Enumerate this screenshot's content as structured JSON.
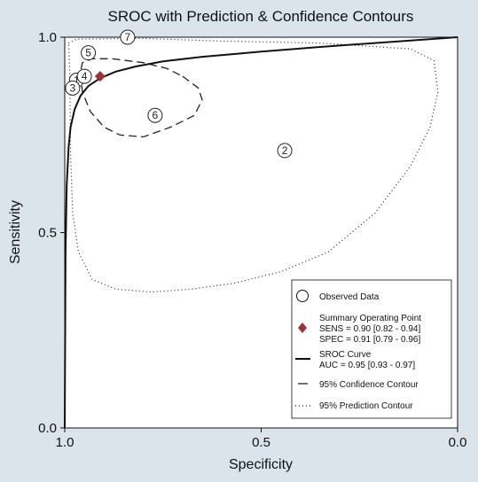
{
  "chart_data": {
    "type": "scatter",
    "title": "SROC with Prediction & Confidence Contours",
    "xlabel": "Specificity",
    "ylabel": "Sensitivity",
    "x_reversed": true,
    "xlim": [
      1.0,
      0.0
    ],
    "ylim": [
      0.0,
      1.0
    ],
    "x_ticks": [
      "1.0",
      "0.5",
      "0.0"
    ],
    "y_ticks": [
      "0.0",
      "0.5",
      "1.0"
    ],
    "grid": false,
    "legend_position": "bottom-right",
    "observed_data": [
      {
        "label": "1",
        "specificity": 0.97,
        "sensitivity": 0.89
      },
      {
        "label": "2",
        "specificity": 0.44,
        "sensitivity": 0.71
      },
      {
        "label": "3",
        "specificity": 0.98,
        "sensitivity": 0.87
      },
      {
        "label": "4",
        "specificity": 0.95,
        "sensitivity": 0.9
      },
      {
        "label": "5",
        "specificity": 0.94,
        "sensitivity": 0.96
      },
      {
        "label": "6",
        "specificity": 0.77,
        "sensitivity": 0.8
      },
      {
        "label": "7",
        "specificity": 0.84,
        "sensitivity": 1.0
      }
    ],
    "summary_point": {
      "specificity": 0.91,
      "sensitivity": 0.9
    },
    "sroc_curve": [
      [
        1.0,
        0.0
      ],
      [
        0.998,
        0.45
      ],
      [
        0.995,
        0.62
      ],
      [
        0.99,
        0.72
      ],
      [
        0.985,
        0.77
      ],
      [
        0.975,
        0.815
      ],
      [
        0.96,
        0.85
      ],
      [
        0.94,
        0.875
      ],
      [
        0.91,
        0.895
      ],
      [
        0.87,
        0.912
      ],
      [
        0.82,
        0.925
      ],
      [
        0.75,
        0.938
      ],
      [
        0.65,
        0.95
      ],
      [
        0.5,
        0.963
      ],
      [
        0.35,
        0.975
      ],
      [
        0.2,
        0.986
      ],
      [
        0.0,
        1.0
      ]
    ],
    "confidence_contour": [
      [
        0.7,
        0.9
      ],
      [
        0.66,
        0.87
      ],
      [
        0.65,
        0.84
      ],
      [
        0.67,
        0.8
      ],
      [
        0.73,
        0.77
      ],
      [
        0.8,
        0.745
      ],
      [
        0.86,
        0.75
      ],
      [
        0.9,
        0.77
      ],
      [
        0.935,
        0.81
      ],
      [
        0.955,
        0.86
      ],
      [
        0.96,
        0.91
      ],
      [
        0.955,
        0.935
      ],
      [
        0.93,
        0.945
      ],
      [
        0.88,
        0.945
      ],
      [
        0.8,
        0.935
      ],
      [
        0.74,
        0.92
      ],
      [
        0.7,
        0.9
      ]
    ],
    "prediction_contour": [
      [
        0.99,
        0.985
      ],
      [
        0.97,
        0.995
      ],
      [
        0.8,
        0.997
      ],
      [
        0.6,
        0.99
      ],
      [
        0.35,
        0.985
      ],
      [
        0.12,
        0.97
      ],
      [
        0.06,
        0.94
      ],
      [
        0.05,
        0.86
      ],
      [
        0.07,
        0.77
      ],
      [
        0.12,
        0.67
      ],
      [
        0.21,
        0.55
      ],
      [
        0.33,
        0.45
      ],
      [
        0.45,
        0.4
      ],
      [
        0.57,
        0.37
      ],
      [
        0.68,
        0.355
      ],
      [
        0.78,
        0.348
      ],
      [
        0.87,
        0.355
      ],
      [
        0.93,
        0.38
      ],
      [
        0.965,
        0.45
      ],
      [
        0.98,
        0.55
      ],
      [
        0.985,
        0.7
      ],
      [
        0.986,
        0.8
      ],
      [
        0.987,
        0.9
      ],
      [
        0.99,
        0.985
      ]
    ],
    "legend": {
      "observed": "Observed Data",
      "summary_line1": "Summary Operating Point",
      "summary_line2": "SENS = 0.90 [0.82 - 0.94]",
      "summary_line3": "SPEC = 0.91 [0.79 - 0.96]",
      "sroc_line1": "SROC Curve",
      "sroc_line2": "AUC = 0.95 [0.93 - 0.97]",
      "confidence": "95% Confidence Contour",
      "prediction": "95% Prediction Contour"
    },
    "colors": {
      "background": "#dbe4eb",
      "plot_area": "#ffffff",
      "line": "#111111",
      "summary_marker": "#a03034"
    }
  }
}
